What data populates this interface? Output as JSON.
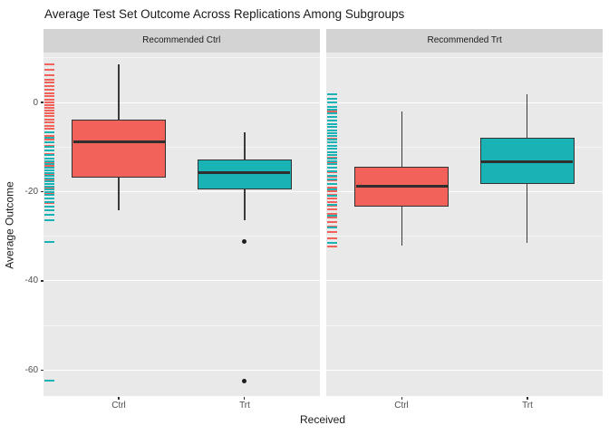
{
  "chart_data": {
    "type": "boxplot",
    "title": "Average Test Set Outcome Across Replications Among Subgroups",
    "xlabel": "Received",
    "ylabel": "Average Outcome",
    "ylim": [
      -65.9,
      11.2
    ],
    "grid": true,
    "legend_position": "none",
    "yticks": [
      {
        "v": 0,
        "label": "0"
      },
      {
        "v": -20,
        "label": "-20"
      },
      {
        "v": -40,
        "label": "-40"
      },
      {
        "v": -60,
        "label": "-60"
      }
    ],
    "yticks_minor": [
      10,
      -10,
      -30,
      -50
    ],
    "colors": {
      "ctrl": "#F3615B",
      "trt": "#19B3B5",
      "box_border": "#333333",
      "median": "#2F2F2F",
      "panel_bg": "#E9E9E9",
      "strip_bg": "#D3D3D3",
      "grid_major": "#FFFFFF",
      "tick_text": "#4D4D4D",
      "outlier": "#1E1E1E"
    },
    "facets": [
      {
        "label": "Recommended Ctrl",
        "categories": [
          "Ctrl",
          "Trt"
        ],
        "boxes": [
          {
            "category": "Ctrl",
            "group": "ctrl",
            "whisker_high": 8.6,
            "q3": -3.8,
            "median": -8.9,
            "q1": -16.9,
            "whisker_low": -24.1,
            "outliers": []
          },
          {
            "category": "Trt",
            "group": "trt",
            "whisker_high": -6.6,
            "q3": -12.7,
            "median": -15.7,
            "q1": -19.5,
            "whisker_low": -26.4,
            "outliers": [
              -31.2,
              -62.4
            ]
          }
        ],
        "rug_ctrl": [
          8.6,
          7.4,
          6.1,
          5.2,
          4.4,
          3.6,
          2.9,
          2.1,
          1.4,
          0.7,
          0.1,
          -0.6,
          -1.2,
          -1.9,
          -2.5,
          -3.1,
          -3.8,
          -4.5,
          -5.2,
          -5.9,
          -6.7,
          -7.5,
          -8.3,
          -9.0,
          -9.8,
          -10.7,
          -11.6,
          -12.5,
          -13.4,
          -14.3,
          -15.3,
          -16.3,
          -17.2,
          -18.2,
          -19.3,
          -20.4,
          -21.5,
          -22.5,
          -23.4,
          -24.1
        ],
        "rug_trt": [
          -6.6,
          -7.9,
          -8.9,
          -9.9,
          -10.8,
          -11.7,
          -12.5,
          -13.2,
          -13.9,
          -14.6,
          -15.2,
          -15.8,
          -16.4,
          -17.0,
          -17.6,
          -18.2,
          -18.8,
          -19.4,
          -20.1,
          -20.8,
          -21.6,
          -22.4,
          -23.3,
          -24.2,
          -25.2,
          -26.4,
          -31.2,
          -62.4
        ]
      },
      {
        "label": "Recommended Trt",
        "categories": [
          "Ctrl",
          "Trt"
        ],
        "boxes": [
          {
            "category": "Ctrl",
            "group": "ctrl",
            "whisker_high": -2.0,
            "q3": -14.4,
            "median": -18.7,
            "q1": -23.4,
            "whisker_low": -32.2,
            "outliers": []
          },
          {
            "category": "Trt",
            "group": "trt",
            "whisker_high": 1.8,
            "q3": -7.9,
            "median": -13.2,
            "q1": -18.3,
            "whisker_low": -31.4,
            "outliers": []
          }
        ],
        "rug_ctrl": [
          -2.0,
          -4.1,
          -6.3,
          -8.1,
          -9.7,
          -11.1,
          -12.4,
          -13.6,
          -14.7,
          -15.7,
          -16.6,
          -17.5,
          -18.3,
          -19.1,
          -19.9,
          -20.7,
          -21.5,
          -22.3,
          -23.1,
          -24.0,
          -24.9,
          -25.8,
          -26.8,
          -27.9,
          -29.1,
          -30.4,
          -32.2
        ],
        "rug_trt": [
          1.8,
          0.9,
          0.0,
          -0.9,
          -1.7,
          -2.5,
          -3.3,
          -4.1,
          -4.8,
          -5.5,
          -6.2,
          -6.9,
          -7.6,
          -8.3,
          -9.0,
          -9.7,
          -10.4,
          -11.1,
          -11.8,
          -12.5,
          -13.2,
          -13.9,
          -14.7,
          -15.5,
          -16.4,
          -17.3,
          -18.3,
          -19.5,
          -21.0,
          -23.0,
          -25.3,
          -28.0,
          -31.4
        ]
      }
    ]
  }
}
